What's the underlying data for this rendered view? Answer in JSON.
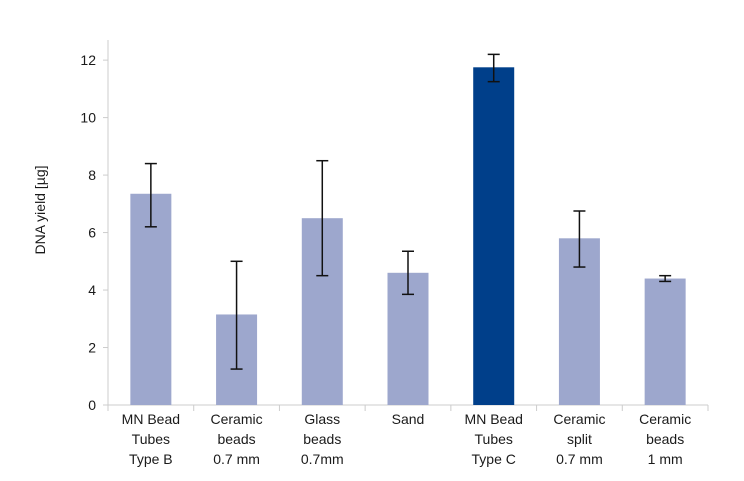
{
  "chart_data": {
    "type": "bar",
    "ylabel": "DNA yield [µg]",
    "xlabel": "",
    "ylim": [
      0,
      12.7
    ],
    "yticks": [
      0,
      2,
      4,
      6,
      8,
      10,
      12
    ],
    "yticks_text": [
      "0",
      "2",
      "4",
      "6",
      "8",
      "10",
      "12"
    ],
    "grid": false,
    "categories": [
      [
        "MN Bead",
        "Tubes",
        "Type B"
      ],
      [
        "Ceramic",
        "beads",
        "0.7 mm"
      ],
      [
        "Glass",
        "beads",
        "0.7mm"
      ],
      [
        "Sand"
      ],
      [
        "MN Bead",
        "Tubes",
        "Type C"
      ],
      [
        "Ceramic",
        "split",
        "0.7 mm"
      ],
      [
        "Ceramic",
        "beads",
        "1 mm"
      ]
    ],
    "values": [
      7.35,
      3.15,
      6.5,
      4.6,
      11.75,
      5.8,
      4.4
    ],
    "error_low": [
      6.2,
      1.25,
      4.5,
      3.85,
      11.25,
      4.8,
      4.3
    ],
    "error_high": [
      8.4,
      5.0,
      8.5,
      5.35,
      12.2,
      6.75,
      4.5
    ],
    "colors": [
      "#9da7cd",
      "#9da7cd",
      "#9da7cd",
      "#9da7cd",
      "#003f8a",
      "#9da7cd",
      "#9da7cd"
    ],
    "axis_color": "#cccccc",
    "error_color": "#111111"
  }
}
